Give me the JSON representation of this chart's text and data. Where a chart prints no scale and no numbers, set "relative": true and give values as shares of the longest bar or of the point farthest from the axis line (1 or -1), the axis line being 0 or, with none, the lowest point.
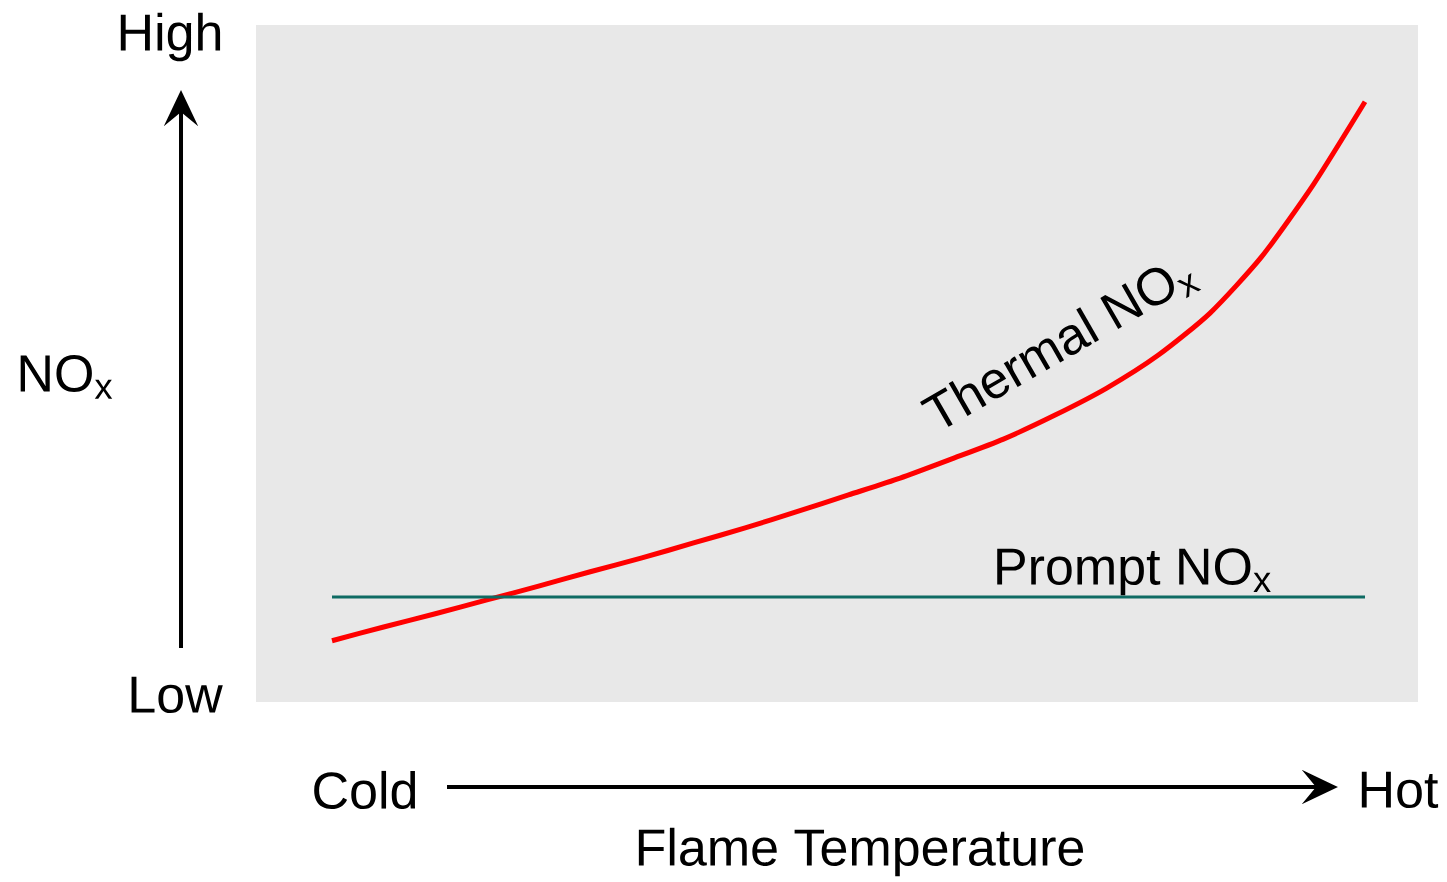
{
  "chart_data": {
    "type": "line",
    "relative": true,
    "xlabel": "Flame Temperature",
    "ylabel": "NO$_{x}$",
    "categories": [
      null,
      null,
      null,
      null,
      null,
      null,
      null,
      null,
      null,
      null,
      null,
      null,
      null,
      null,
      null,
      null,
      null,
      null,
      null,
      null,
      null
    ],
    "series": [
      {
        "name": "Thermal NO$_{x}$",
        "color": "#ff0000",
        "values": [
          0.102,
          0.125,
          0.147,
          0.17,
          0.193,
          0.217,
          0.24,
          0.265,
          0.29,
          0.317,
          0.345,
          0.373,
          0.405,
          0.438,
          0.478,
          0.523,
          0.578,
          0.648,
          0.742,
          0.862,
          1
        ]
      },
      {
        "name": "Prompt NO$_{x}$",
        "color": "#0e6b63",
        "values": [
          0.175,
          0.175,
          0.175,
          0.175,
          0.175,
          0.175,
          0.175,
          0.175,
          0.175,
          0.175,
          0.175,
          0.175,
          0.175,
          0.175,
          0.175,
          0.175,
          0.175,
          0.175,
          0.175,
          0.175,
          0.175
        ]
      }
    ],
    "annotations": [
      "High",
      "Low",
      "Cold",
      "Hot"
    ]
  }
}
